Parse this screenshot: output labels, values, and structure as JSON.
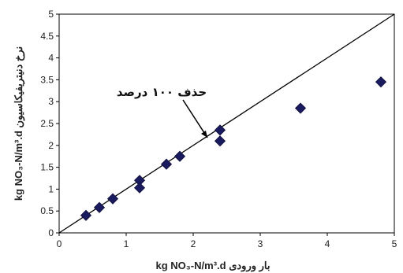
{
  "chart_data": {
    "type": "scatter",
    "x": [
      0.4,
      0.6,
      0.8,
      1.2,
      1.2,
      1.6,
      1.8,
      2.4,
      2.4,
      3.6,
      4.8
    ],
    "y": [
      0.4,
      0.58,
      0.78,
      1.2,
      1.03,
      1.57,
      1.75,
      2.35,
      2.1,
      2.85,
      3.45
    ],
    "xlim": [
      0,
      5
    ],
    "ylim": [
      0,
      5
    ],
    "xticks": [
      "0",
      "1",
      "2",
      "3",
      "4",
      "5"
    ],
    "yticks": [
      "0",
      "0.5",
      "1",
      "1.5",
      "2",
      "2.5",
      "3",
      "3.5",
      "4",
      "4.5",
      "5"
    ],
    "xlabel": "kg NO₃-N/m³.d بار ورودی",
    "ylabel": "kg NO₃-N/m³.d نرخ دنیتریفیکاسیون",
    "reference_line": {
      "label": "حذف ۱۰۰ درصد",
      "x": [
        0,
        5
      ],
      "y": [
        0,
        5
      ]
    },
    "annotation": "حذف ۱۰۰ درصد",
    "marker_color": "#1a1a5e",
    "grid": false,
    "legend": "none"
  }
}
